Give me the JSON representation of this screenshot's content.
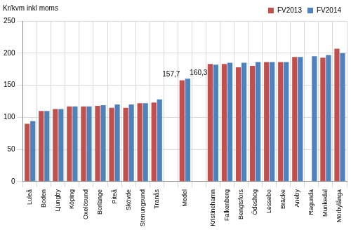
{
  "chart_data": {
    "type": "bar",
    "y_label": "Kr/kvm inkl moms",
    "categories": [
      "Luleå",
      "Boden",
      "Ljungby",
      "Köping",
      "Oxelösund",
      "Borlänge",
      "Piteå",
      "Skövde",
      "Stenungsund",
      "Tranås",
      null,
      "Medel",
      null,
      "Kristinehamn",
      "Falkenberg",
      "Bengtsfors",
      "Ödeshög",
      "Lessebo",
      "Bräcke",
      "Aneby",
      "Ragunda",
      "Munkedal",
      "Mörbylånga"
    ],
    "series": [
      {
        "name": "FV2013",
        "color": "#c0504d",
        "values": [
          90,
          110,
          113,
          117,
          117,
          118,
          115,
          115,
          122,
          123,
          null,
          157.7,
          null,
          183,
          183,
          178,
          180,
          186,
          186,
          194,
          null,
          193,
          207
        ],
        "value_labels": [
          null,
          null,
          null,
          null,
          null,
          null,
          null,
          null,
          null,
          null,
          null,
          "157,7",
          null,
          null,
          null,
          null,
          null,
          null,
          null,
          null,
          null,
          null,
          null
        ]
      },
      {
        "name": "FV2014",
        "color": "#4f81bd",
        "values": [
          94,
          110,
          113,
          117,
          117,
          119,
          120,
          120,
          122,
          128,
          null,
          160.3,
          null,
          182,
          185,
          185,
          186,
          186,
          186,
          194,
          195,
          197,
          200
        ],
        "value_labels": [
          null,
          null,
          null,
          null,
          null,
          null,
          null,
          null,
          null,
          null,
          null,
          "160,3",
          null,
          null,
          null,
          null,
          null,
          null,
          null,
          null,
          null,
          null,
          null
        ]
      }
    ],
    "ylim": [
      0,
      250
    ],
    "yticks": [
      0,
      50,
      100,
      150,
      200,
      250
    ],
    "grid": true,
    "legend": "top-right"
  }
}
